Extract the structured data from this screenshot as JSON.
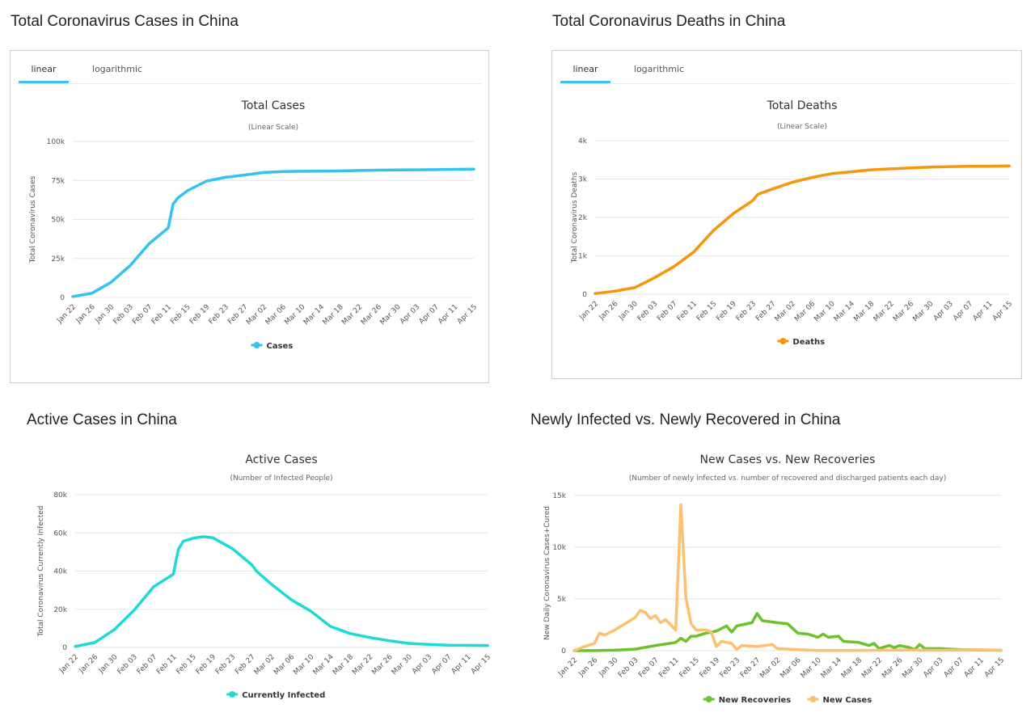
{
  "panels": [
    {
      "id": "total-cases",
      "section_title": "Total Coronavirus Cases in China",
      "tabs": [
        {
          "label": "linear",
          "active": true
        },
        {
          "label": "logarithmic",
          "active": false
        }
      ]
    },
    {
      "id": "total-deaths",
      "section_title": "Total Coronavirus Deaths in China",
      "tabs": [
        {
          "label": "linear",
          "active": true
        },
        {
          "label": "logarithmic",
          "active": false
        }
      ]
    },
    {
      "id": "active-cases",
      "section_title": "Active Cases in China"
    },
    {
      "id": "new-cases-recoveries",
      "section_title": "Newly Infected vs. Newly Recovered in China"
    }
  ],
  "chart_data": [
    {
      "type": "line",
      "title": "Total Cases",
      "subtitle": "(Linear Scale)",
      "ylabel": "Total Coronavirus Cases",
      "xlabel": "",
      "ylim": [
        0,
        100000
      ],
      "yticks": [
        {
          "v": 0,
          "label": "0"
        },
        {
          "v": 25000,
          "label": "25k"
        },
        {
          "v": 50000,
          "label": "50k"
        },
        {
          "v": 75000,
          "label": "75k"
        },
        {
          "v": 100000,
          "label": "100k"
        }
      ],
      "x_tick_labels": [
        "Jan 22",
        "Jan 26",
        "Jan 30",
        "Feb 03",
        "Feb 07",
        "Feb 11",
        "Feb 15",
        "Feb 19",
        "Feb 23",
        "Feb 27",
        "Mar 02",
        "Mar 06",
        "Mar 10",
        "Mar 14",
        "Mar 18",
        "Mar 22",
        "Mar 26",
        "Mar 30",
        "Apr 03",
        "Apr 07",
        "Apr 11",
        "Apr 15"
      ],
      "grid": true,
      "legend_position": "bottom",
      "series": [
        {
          "name": "Cases",
          "color": "#33c3f0",
          "type": "line",
          "points": [
            [
              "Jan 22",
              548
            ],
            [
              "Jan 26",
              2700
            ],
            [
              "Jan 30",
              9700
            ],
            [
              "Feb 03",
              20400
            ],
            [
              "Feb 07",
              34500
            ],
            [
              "Feb 11",
              44600
            ],
            [
              "Feb 12",
              59800
            ],
            [
              "Feb 13",
              63800
            ],
            [
              "Feb 15",
              68400
            ],
            [
              "Feb 19",
              74600
            ],
            [
              "Feb 23",
              77000
            ],
            [
              "Feb 27",
              78500
            ],
            [
              "Mar 02",
              80100
            ],
            [
              "Mar 06",
              80700
            ],
            [
              "Mar 10",
              80900
            ],
            [
              "Mar 14",
              81000
            ],
            [
              "Mar 18",
              81100
            ],
            [
              "Mar 22",
              81400
            ],
            [
              "Mar 26",
              81600
            ],
            [
              "Mar 30",
              81700
            ],
            [
              "Apr 03",
              81800
            ],
            [
              "Apr 07",
              81900
            ],
            [
              "Apr 11",
              82100
            ],
            [
              "Apr 15",
              82300
            ]
          ]
        }
      ]
    },
    {
      "type": "line",
      "title": "Total Deaths",
      "subtitle": "(Linear Scale)",
      "ylabel": "Total Coronavirus Deaths",
      "xlabel": "",
      "ylim": [
        0,
        4000
      ],
      "yticks": [
        {
          "v": 0,
          "label": "0"
        },
        {
          "v": 1000,
          "label": "1k"
        },
        {
          "v": 2000,
          "label": "2k"
        },
        {
          "v": 3000,
          "label": "3k"
        },
        {
          "v": 4000,
          "label": "4k"
        }
      ],
      "x_tick_labels": [
        "Jan 22",
        "Jan 26",
        "Jan 30",
        "Feb 03",
        "Feb 07",
        "Feb 11",
        "Feb 15",
        "Feb 19",
        "Feb 23",
        "Feb 27",
        "Mar 02",
        "Mar 06",
        "Mar 10",
        "Mar 14",
        "Mar 18",
        "Mar 22",
        "Mar 26",
        "Mar 30",
        "Apr 03",
        "Apr 07",
        "Apr 11",
        "Apr 15"
      ],
      "grid": true,
      "legend_position": "bottom",
      "series": [
        {
          "name": "Deaths",
          "color": "#f7960c",
          "type": "line",
          "points": [
            [
              "Jan 22",
              17
            ],
            [
              "Jan 26",
              80
            ],
            [
              "Jan 30",
              170
            ],
            [
              "Feb 03",
              425
            ],
            [
              "Feb 07",
              720
            ],
            [
              "Feb 11",
              1100
            ],
            [
              "Feb 15",
              1660
            ],
            [
              "Feb 19",
              2100
            ],
            [
              "Feb 23",
              2440
            ],
            [
              "Feb 24",
              2600
            ],
            [
              "Feb 27",
              2740
            ],
            [
              "Mar 02",
              2915
            ],
            [
              "Mar 06",
              3040
            ],
            [
              "Mar 10",
              3140
            ],
            [
              "Mar 14",
              3190
            ],
            [
              "Mar 18",
              3240
            ],
            [
              "Mar 22",
              3265
            ],
            [
              "Mar 26",
              3290
            ],
            [
              "Mar 30",
              3310
            ],
            [
              "Apr 03",
              3325
            ],
            [
              "Apr 07",
              3331
            ],
            [
              "Apr 11",
              3335
            ],
            [
              "Apr 15",
              3341
            ]
          ]
        }
      ]
    },
    {
      "type": "line",
      "title": "Active Cases",
      "subtitle": "(Number of Infected People)",
      "ylabel": "Total Coronavirus Currently Infected",
      "xlabel": "",
      "ylim": [
        0,
        80000
      ],
      "yticks": [
        {
          "v": 0,
          "label": "0"
        },
        {
          "v": 20000,
          "label": "20k"
        },
        {
          "v": 40000,
          "label": "40k"
        },
        {
          "v": 60000,
          "label": "60k"
        },
        {
          "v": 80000,
          "label": "80k"
        }
      ],
      "x_tick_labels": [
        "Jan 22",
        "Jan 26",
        "Jan 30",
        "Feb 03",
        "Feb 07",
        "Feb 11",
        "Feb 15",
        "Feb 19",
        "Feb 23",
        "Feb 27",
        "Mar 02",
        "Mar 06",
        "Mar 10",
        "Mar 14",
        "Mar 18",
        "Mar 22",
        "Mar 26",
        "Mar 30",
        "Apr 03",
        "Apr 07",
        "Apr 11",
        "Apr 15"
      ],
      "grid": true,
      "legend_position": "bottom",
      "series": [
        {
          "name": "Currently Infected",
          "color": "#1fd8d8",
          "type": "line",
          "points": [
            [
              "Jan 22",
              500
            ],
            [
              "Jan 26",
              2600
            ],
            [
              "Jan 30",
              9400
            ],
            [
              "Feb 03",
              19500
            ],
            [
              "Feb 07",
              31800
            ],
            [
              "Feb 11",
              38400
            ],
            [
              "Feb 12",
              51300
            ],
            [
              "Feb 13",
              55600
            ],
            [
              "Feb 15",
              57200
            ],
            [
              "Feb 17",
              58000
            ],
            [
              "Feb 19",
              57500
            ],
            [
              "Feb 23",
              51800
            ],
            [
              "Feb 27",
              43200
            ],
            [
              "Feb 28",
              39800
            ],
            [
              "Mar 02",
              33000
            ],
            [
              "Mar 06",
              25000
            ],
            [
              "Mar 10",
              19000
            ],
            [
              "Mar 14",
              11000
            ],
            [
              "Mar 18",
              7300
            ],
            [
              "Mar 22",
              5200
            ],
            [
              "Mar 26",
              3500
            ],
            [
              "Mar 30",
              2100
            ],
            [
              "Apr 03",
              1600
            ],
            [
              "Apr 07",
              1200
            ],
            [
              "Apr 11",
              1100
            ],
            [
              "Apr 15",
              1000
            ]
          ]
        }
      ]
    },
    {
      "type": "line",
      "title": "New Cases vs. New Recoveries",
      "subtitle": "(Number of newly infected vs. number of recovered and discharged patients each day)",
      "ylabel": "New Daily Coronavirus Cases+Cured",
      "xlabel": "",
      "ylim": [
        0,
        15000
      ],
      "yticks": [
        {
          "v": 0,
          "label": "0"
        },
        {
          "v": 5000,
          "label": "5k"
        },
        {
          "v": 10000,
          "label": "10k"
        },
        {
          "v": 15000,
          "label": "15k"
        }
      ],
      "x_tick_labels": [
        "Jan 22",
        "Jan 26",
        "Jan 30",
        "Feb 03",
        "Feb 07",
        "Feb 11",
        "Feb 15",
        "Feb 19",
        "Feb 23",
        "Feb 27",
        "Mar 02",
        "Mar 06",
        "Mar 10",
        "Mar 14",
        "Mar 18",
        "Mar 22",
        "Mar 26",
        "Mar 30",
        "Apr 03",
        "Apr 07",
        "Apr 11",
        "Apr 15"
      ],
      "grid": true,
      "legend_position": "bottom",
      "series": [
        {
          "name": "New Recoveries",
          "color": "#6cc22b",
          "type": "line",
          "points": [
            [
              "Jan 22",
              0
            ],
            [
              "Jan 26",
              10
            ],
            [
              "Jan 30",
              50
            ],
            [
              "Feb 03",
              150
            ],
            [
              "Feb 07",
              500
            ],
            [
              "Feb 11",
              800
            ],
            [
              "Feb 12",
              1200
            ],
            [
              "Feb 13",
              900
            ],
            [
              "Feb 14",
              1400
            ],
            [
              "Feb 15",
              1400
            ],
            [
              "Feb 17",
              1700
            ],
            [
              "Feb 18",
              1800
            ],
            [
              "Feb 19",
              1900
            ],
            [
              "Feb 21",
              2400
            ],
            [
              "Feb 22",
              1800
            ],
            [
              "Feb 23",
              2400
            ],
            [
              "Feb 24",
              2500
            ],
            [
              "Feb 26",
              2700
            ],
            [
              "Feb 27",
              3600
            ],
            [
              "Feb 28",
              2900
            ],
            [
              "Mar 02",
              2700
            ],
            [
              "Mar 04",
              2600
            ],
            [
              "Mar 06",
              1700
            ],
            [
              "Mar 08",
              1600
            ],
            [
              "Mar 10",
              1300
            ],
            [
              "Mar 11",
              1600
            ],
            [
              "Mar 12",
              1300
            ],
            [
              "Mar 14",
              1400
            ],
            [
              "Mar 15",
              900
            ],
            [
              "Mar 18",
              800
            ],
            [
              "Mar 20",
              500
            ],
            [
              "Mar 21",
              700
            ],
            [
              "Mar 22",
              200
            ],
            [
              "Mar 24",
              500
            ],
            [
              "Mar 25",
              300
            ],
            [
              "Mar 26",
              500
            ],
            [
              "Mar 28",
              300
            ],
            [
              "Mar 29",
              100
            ],
            [
              "Mar 30",
              600
            ],
            [
              "Mar 31",
              200
            ],
            [
              "Apr 03",
              200
            ],
            [
              "Apr 07",
              100
            ],
            [
              "Apr 11",
              60
            ],
            [
              "Apr 15",
              40
            ]
          ]
        },
        {
          "name": "New Cases",
          "color": "#ffbf70",
          "type": "line",
          "points": [
            [
              "Jan 22",
              0
            ],
            [
              "Jan 24",
              400
            ],
            [
              "Jan 26",
              700
            ],
            [
              "Jan 27",
              1700
            ],
            [
              "Jan 28",
              1500
            ],
            [
              "Jan 30",
              2000
            ],
            [
              "Feb 01",
              2600
            ],
            [
              "Feb 03",
              3200
            ],
            [
              "Feb 04",
              3900
            ],
            [
              "Feb 05",
              3700
            ],
            [
              "Feb 06",
              3100
            ],
            [
              "Feb 07",
              3400
            ],
            [
              "Feb 08",
              2700
            ],
            [
              "Feb 09",
              3000
            ],
            [
              "Feb 11",
              2000
            ],
            [
              "Feb 12",
              14100
            ],
            [
              "Feb 13",
              5100
            ],
            [
              "Feb 14",
              2600
            ],
            [
              "Feb 15",
              2000
            ],
            [
              "Feb 17",
              2000
            ],
            [
              "Feb 18",
              1800
            ],
            [
              "Feb 19",
              400
            ],
            [
              "Feb 20",
              900
            ],
            [
              "Feb 22",
              700
            ],
            [
              "Feb 23",
              100
            ],
            [
              "Feb 24",
              500
            ],
            [
              "Feb 27",
              400
            ],
            [
              "Mar 01",
              600
            ],
            [
              "Mar 02",
              200
            ],
            [
              "Mar 06",
              100
            ],
            [
              "Mar 10",
              20
            ],
            [
              "Mar 14",
              20
            ],
            [
              "Mar 18",
              30
            ],
            [
              "Mar 22",
              40
            ],
            [
              "Mar 26",
              60
            ],
            [
              "Mar 30",
              50
            ],
            [
              "Apr 03",
              40
            ],
            [
              "Apr 07",
              60
            ],
            [
              "Apr 11",
              90
            ],
            [
              "Apr 15",
              40
            ]
          ]
        }
      ]
    }
  ]
}
